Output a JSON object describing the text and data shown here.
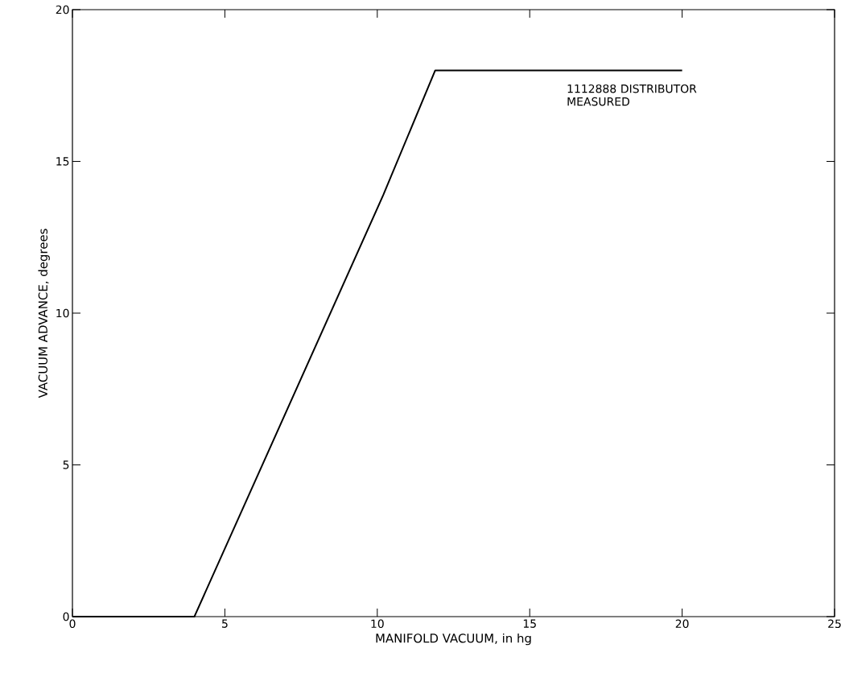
{
  "chart_data": {
    "type": "line",
    "xlabel": "MANIFOLD VACUUM, in hg",
    "ylabel": "VACUUM ADVANCE, degrees",
    "x": [
      0,
      4,
      10.2,
      11.9,
      20
    ],
    "series": [
      {
        "name": "1112888 DISTRIBUTOR MEASURED",
        "color": "#000000",
        "values": [
          0,
          0,
          13.9,
          18,
          18
        ]
      }
    ],
    "xlim": [
      0,
      25
    ],
    "ylim": [
      0,
      20
    ],
    "xticks": [
      0,
      5,
      10,
      15,
      20,
      25
    ],
    "yticks": [
      0,
      5,
      10,
      15,
      20
    ],
    "grid": false,
    "legend": false,
    "marker": "none",
    "line_style": "solid"
  }
}
